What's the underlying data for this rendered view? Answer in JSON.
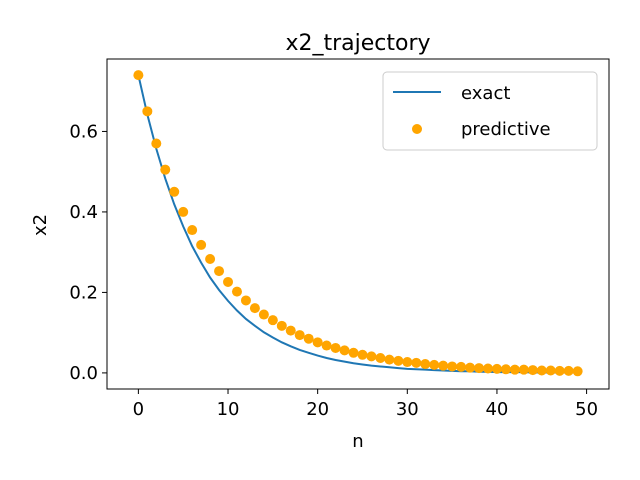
{
  "chart_data": {
    "type": "line",
    "title": "x2_trajectory",
    "xlabel": "n",
    "ylabel": "x2",
    "xlim": [
      -3.5,
      52.5
    ],
    "ylim": [
      -0.04,
      0.78
    ],
    "xticks": [
      0,
      10,
      20,
      30,
      40,
      50
    ],
    "yticks": [
      0.0,
      0.2,
      0.4,
      0.6
    ],
    "grid": false,
    "legend_position": "top-right",
    "series": [
      {
        "name": "exact",
        "kind": "line",
        "color": "#1f77b4",
        "x": [
          0,
          1,
          2,
          3,
          4,
          5,
          6,
          7,
          8,
          9,
          10,
          11,
          12,
          13,
          14,
          15,
          16,
          17,
          18,
          19,
          20,
          21,
          22,
          23,
          24,
          25,
          26,
          27,
          28,
          29,
          30,
          31,
          32,
          33,
          34,
          35,
          36,
          37,
          38,
          39,
          40,
          41,
          42,
          43,
          44,
          45,
          46,
          47,
          48,
          49
        ],
        "values": [
          0.74,
          0.642,
          0.557,
          0.483,
          0.419,
          0.364,
          0.315,
          0.274,
          0.237,
          0.206,
          0.179,
          0.155,
          0.134,
          0.117,
          0.101,
          0.088,
          0.076,
          0.066,
          0.057,
          0.05,
          0.043,
          0.037,
          0.032,
          0.028,
          0.024,
          0.021,
          0.018,
          0.016,
          0.014,
          0.012,
          0.01,
          0.009,
          0.008,
          0.007,
          0.006,
          0.005,
          0.004,
          0.004,
          0.003,
          0.003,
          0.002,
          0.002,
          0.002,
          0.002,
          0.001,
          0.001,
          0.001,
          0.001,
          0.001,
          0.001
        ]
      },
      {
        "name": "predictive",
        "kind": "scatter",
        "color": "#ffa500",
        "x": [
          0,
          1,
          2,
          3,
          4,
          5,
          6,
          7,
          8,
          9,
          10,
          11,
          12,
          13,
          14,
          15,
          16,
          17,
          18,
          19,
          20,
          21,
          22,
          23,
          24,
          25,
          26,
          27,
          28,
          29,
          30,
          31,
          32,
          33,
          34,
          35,
          36,
          37,
          38,
          39,
          40,
          41,
          42,
          43,
          44,
          45,
          46,
          47,
          48,
          49
        ],
        "values": [
          0.74,
          0.65,
          0.57,
          0.505,
          0.45,
          0.4,
          0.355,
          0.318,
          0.283,
          0.253,
          0.226,
          0.202,
          0.18,
          0.161,
          0.145,
          0.131,
          0.117,
          0.105,
          0.094,
          0.085,
          0.076,
          0.068,
          0.062,
          0.056,
          0.05,
          0.045,
          0.041,
          0.037,
          0.033,
          0.03,
          0.027,
          0.025,
          0.022,
          0.02,
          0.018,
          0.016,
          0.015,
          0.013,
          0.012,
          0.011,
          0.01,
          0.009,
          0.008,
          0.008,
          0.007,
          0.006,
          0.006,
          0.005,
          0.005,
          0.004
        ]
      }
    ]
  }
}
